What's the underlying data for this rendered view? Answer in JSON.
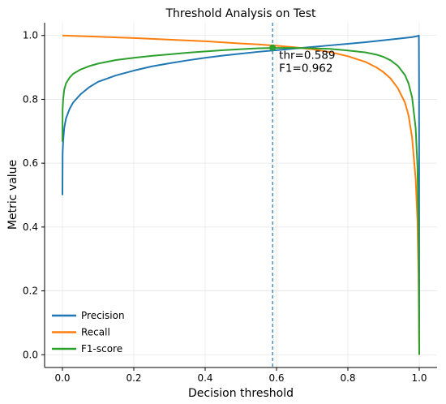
{
  "chart_data": {
    "type": "line",
    "title": "Threshold Analysis on Test",
    "xlabel": "Decision threshold",
    "ylabel": "Metric value",
    "xlim": [
      -0.05,
      1.05
    ],
    "ylim": [
      -0.04,
      1.04
    ],
    "x_ticks": [
      "0.0",
      "0.2",
      "0.4",
      "0.6",
      "0.8",
      "1.0"
    ],
    "y_ticks": [
      "0.0",
      "0.2",
      "0.4",
      "0.6",
      "0.8",
      "1.0"
    ],
    "grid": true,
    "legend_position": "lower-left",
    "series": [
      {
        "name": "Precision",
        "color": "#1f77b4",
        "x": [
          0.0,
          0.0005,
          0.002,
          0.005,
          0.01,
          0.02,
          0.03,
          0.05,
          0.075,
          0.1,
          0.15,
          0.2,
          0.25,
          0.3,
          0.35,
          0.4,
          0.45,
          0.5,
          0.55,
          0.6,
          0.65,
          0.7,
          0.75,
          0.8,
          0.85,
          0.9,
          0.95,
          0.98,
          0.995,
          0.999,
          0.9995,
          0.9998,
          1.0
        ],
        "y": [
          0.5,
          0.63,
          0.67,
          0.71,
          0.74,
          0.77,
          0.79,
          0.815,
          0.838,
          0.855,
          0.875,
          0.89,
          0.903,
          0.913,
          0.922,
          0.93,
          0.937,
          0.943,
          0.949,
          0.954,
          0.959,
          0.964,
          0.969,
          0.974,
          0.979,
          0.985,
          0.991,
          0.995,
          0.998,
          1.0,
          0.85,
          0.45,
          0.0
        ]
      },
      {
        "name": "Recall",
        "color": "#ff7f0e",
        "x": [
          0.0,
          0.1,
          0.2,
          0.3,
          0.4,
          0.5,
          0.55,
          0.6,
          0.65,
          0.7,
          0.75,
          0.8,
          0.85,
          0.88,
          0.9,
          0.92,
          0.94,
          0.96,
          0.97,
          0.98,
          0.99,
          0.995,
          0.998,
          1.0
        ],
        "y": [
          1.0,
          0.996,
          0.992,
          0.987,
          0.982,
          0.975,
          0.972,
          0.968,
          0.963,
          0.957,
          0.948,
          0.935,
          0.917,
          0.9,
          0.885,
          0.865,
          0.835,
          0.79,
          0.75,
          0.68,
          0.55,
          0.42,
          0.25,
          0.0
        ]
      },
      {
        "name": "F1-score",
        "color": "#2ca02c",
        "x": [
          0.0,
          0.0005,
          0.002,
          0.005,
          0.01,
          0.02,
          0.03,
          0.05,
          0.075,
          0.1,
          0.15,
          0.2,
          0.25,
          0.3,
          0.35,
          0.4,
          0.45,
          0.5,
          0.55,
          0.6,
          0.65,
          0.7,
          0.75,
          0.8,
          0.85,
          0.88,
          0.9,
          0.92,
          0.94,
          0.96,
          0.97,
          0.98,
          0.99,
          0.995,
          0.998,
          1.0
        ],
        "y": [
          0.667,
          0.77,
          0.8,
          0.83,
          0.85,
          0.868,
          0.88,
          0.893,
          0.904,
          0.912,
          0.923,
          0.93,
          0.936,
          0.941,
          0.946,
          0.95,
          0.954,
          0.957,
          0.96,
          0.961,
          0.961,
          0.96,
          0.958,
          0.953,
          0.947,
          0.94,
          0.933,
          0.922,
          0.905,
          0.876,
          0.85,
          0.806,
          0.71,
          0.59,
          0.4,
          0.0
        ]
      }
    ],
    "annotation": {
      "threshold": 0.589,
      "f1": 0.962,
      "line_color": "#1f77b4",
      "lines": [
        "thr=0.589",
        "F1=0.962"
      ]
    }
  }
}
